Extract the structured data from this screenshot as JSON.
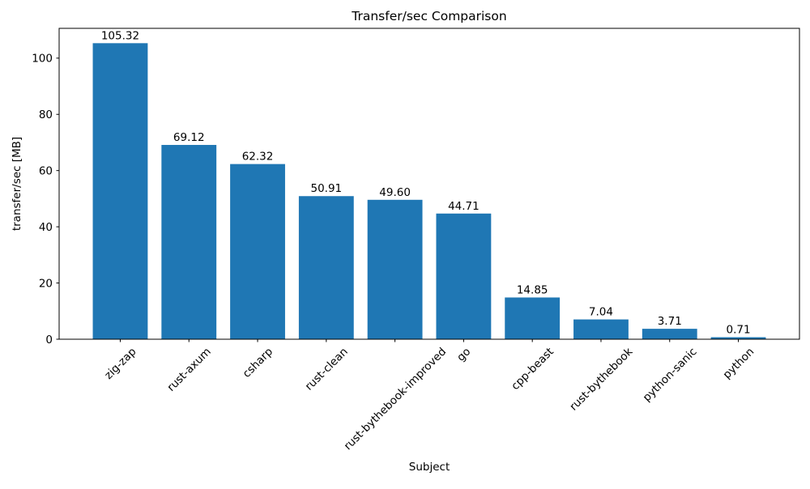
{
  "figure": {
    "background": "#ffffff"
  },
  "chart_data": {
    "type": "bar",
    "title": "Transfer/sec Comparison",
    "xlabel": "Subject",
    "ylabel": "transfer/sec [MB]",
    "categories": [
      "zig-zap",
      "rust-axum",
      "csharp",
      "rust-clean",
      "rust-bythebook-improved",
      "go",
      "cpp-beast",
      "rust-bythebook",
      "python-sanic",
      "python"
    ],
    "values": [
      105.32,
      69.12,
      62.32,
      50.91,
      49.6,
      44.71,
      14.85,
      7.04,
      3.71,
      0.71
    ],
    "bar_labels": [
      "105.32",
      "69.12",
      "62.32",
      "50.91",
      "49.60",
      "44.71",
      "14.85",
      "7.04",
      "3.71",
      "0.71"
    ],
    "yticks": [
      0,
      20,
      40,
      60,
      80,
      100
    ],
    "ylim": [
      0,
      110.6
    ],
    "bar_width_frac": 0.8,
    "bar_color": "#1f77b4",
    "axis_color": "#000000",
    "text_color": "#000000",
    "grid": false,
    "legend": "none",
    "x_tick_rotation_deg": 45
  }
}
